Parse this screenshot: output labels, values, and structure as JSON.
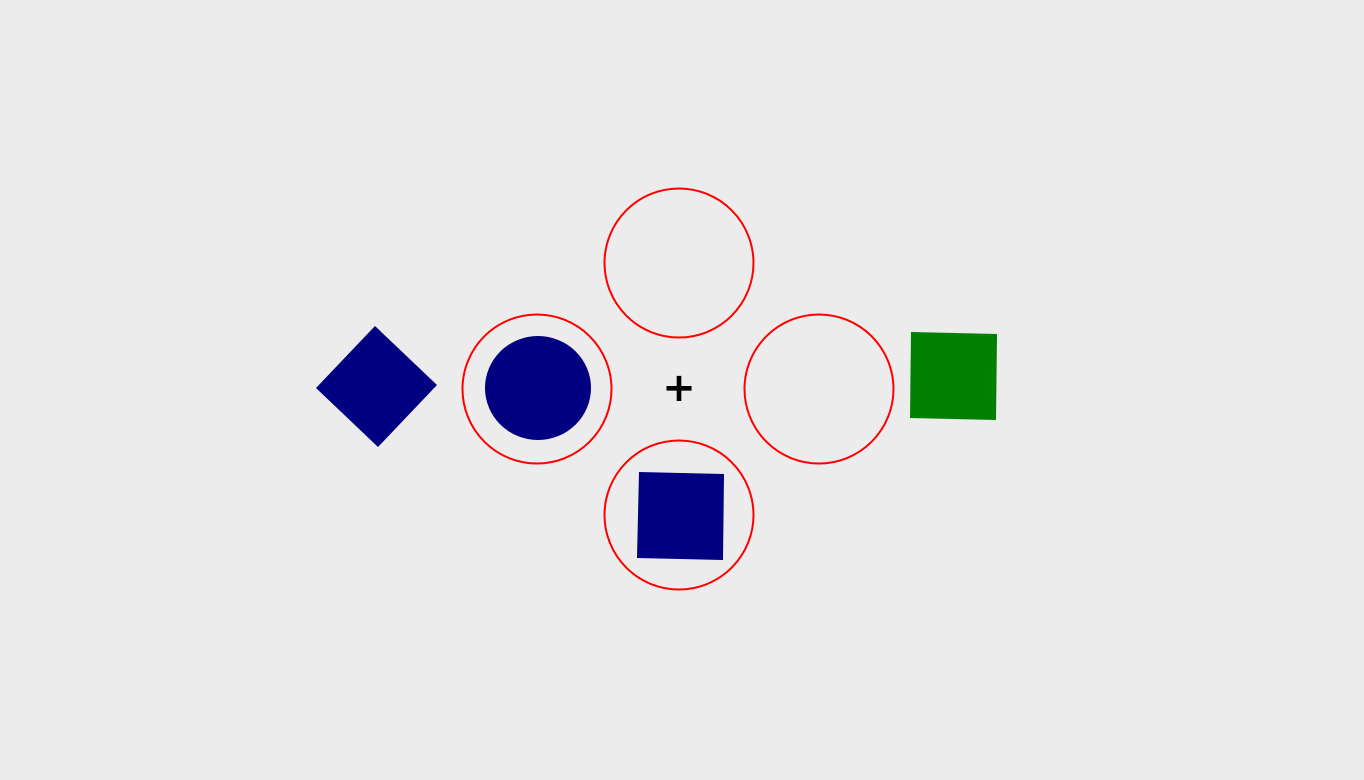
{
  "fixation": {
    "symbol": "+"
  },
  "colors": {
    "background": "#ececec",
    "ring": "#ff0000",
    "target_blue": "#000080",
    "distractor_green": "#008000",
    "fixation": "#000000"
  },
  "rings": [
    {
      "position": "top",
      "contains": "none"
    },
    {
      "position": "left",
      "contains": "blue-circle"
    },
    {
      "position": "right",
      "contains": "none"
    },
    {
      "position": "bottom",
      "contains": "blue-square"
    }
  ],
  "outer_shapes": [
    {
      "position": "far-left",
      "shape": "diamond",
      "color": "blue"
    },
    {
      "position": "far-right",
      "shape": "square",
      "color": "green"
    }
  ]
}
